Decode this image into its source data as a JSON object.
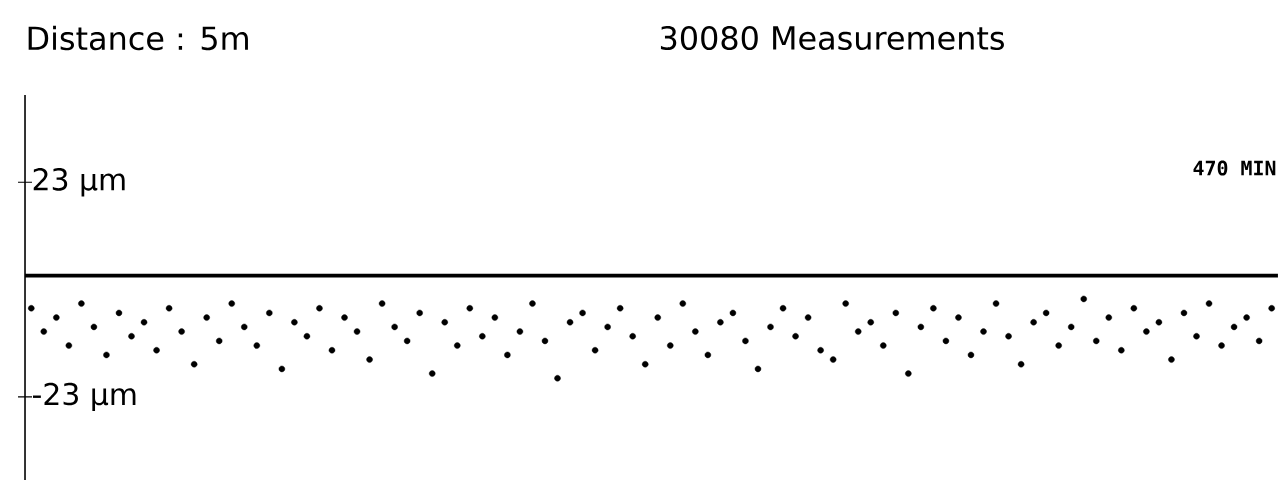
{
  "chart_data": {
    "type": "scatter",
    "title": "30080 Measurements",
    "annotations": [
      "Distance : 5m",
      "470 MIN"
    ],
    "categories": [
      null,
      null,
      null,
      null,
      null,
      null,
      null,
      null,
      null,
      null,
      null,
      null,
      null,
      null,
      null,
      null,
      null,
      null,
      null,
      null,
      null,
      null,
      null,
      null,
      null,
      null,
      null,
      null,
      null,
      null,
      null,
      null,
      null,
      null,
      null,
      null,
      null,
      null,
      null,
      null,
      null,
      null,
      null,
      null,
      null,
      null,
      null,
      null,
      null,
      null,
      null,
      null,
      null,
      null,
      null,
      null,
      null,
      null,
      null,
      null,
      null,
      null,
      null,
      null,
      null,
      null,
      null,
      null,
      null,
      null,
      null,
      null,
      null,
      null,
      null,
      null,
      null,
      null,
      null,
      null,
      null,
      null,
      null,
      null,
      null,
      null,
      null,
      null,
      null,
      null,
      null,
      null,
      null,
      null,
      null,
      null,
      null,
      null,
      null,
      null
    ],
    "values": [
      -4,
      -9,
      -6,
      -12,
      -3,
      -8,
      -14,
      -5,
      -10,
      -7,
      -13,
      -4,
      -9,
      -16,
      -6,
      -11,
      -3,
      -8,
      -12,
      -5,
      -17,
      -7,
      -10,
      -4,
      -13,
      -6,
      -9,
      -15,
      -3,
      -8,
      -11,
      -5,
      -18,
      -7,
      -12,
      -4,
      -10,
      -6,
      -14,
      -9,
      -3,
      -11,
      -19,
      -7,
      -5,
      -13,
      -8,
      -4,
      -10,
      -16,
      -6,
      -12,
      -3,
      -9,
      -14,
      -7,
      -5,
      -11,
      -17,
      -8,
      -4,
      -10,
      -6,
      -13,
      -15,
      -3,
      -9,
      -7,
      -12,
      -5,
      -18,
      -8,
      -4,
      -11,
      -6,
      -14,
      -9,
      -3,
      -10,
      -16,
      -7,
      -5,
      -12,
      -8,
      -2,
      -11,
      -6,
      -13,
      -4,
      -9,
      -7,
      -15,
      -5,
      -10,
      -3,
      -12,
      -8,
      -6,
      -11,
      -4
    ],
    "color": "#000000",
    "ylim": [
      -40.8,
      41.7
    ],
    "yticks": [
      {
        "value": 23,
        "label": "23 µm"
      },
      {
        "value": -23,
        "label": "-23 µm"
      }
    ],
    "ref_lines": [
      {
        "axis": "y",
        "value": 3,
        "color": "#000000"
      }
    ]
  }
}
